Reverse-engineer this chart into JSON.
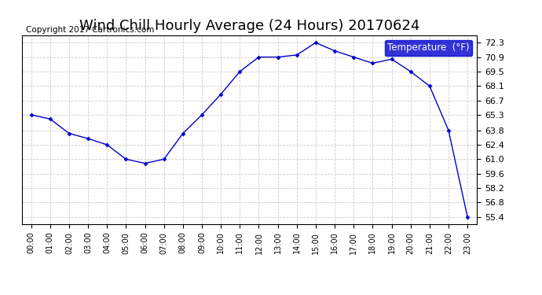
{
  "title": "Wind Chill Hourly Average (24 Hours) 20170624",
  "copyright": "Copyright 2017 Cartronics.com",
  "legend_label": "Temperature  (°F)",
  "x_labels": [
    "00:00",
    "01:00",
    "02:00",
    "03:00",
    "04:00",
    "05:00",
    "06:00",
    "07:00",
    "08:00",
    "09:00",
    "10:00",
    "11:00",
    "12:00",
    "13:00",
    "14:00",
    "15:00",
    "16:00",
    "17:00",
    "18:00",
    "19:00",
    "20:00",
    "21:00",
    "22:00",
    "23:00"
  ],
  "y_values": [
    65.3,
    64.9,
    63.5,
    63.0,
    62.4,
    61.0,
    60.6,
    61.0,
    63.5,
    65.3,
    67.3,
    69.5,
    70.9,
    70.9,
    71.1,
    72.3,
    71.5,
    70.9,
    70.3,
    70.7,
    69.5,
    68.1,
    63.8,
    55.4
  ],
  "line_color": "#0000cc",
  "marker_color": "#0000cc",
  "bg_color": "#ffffff",
  "plot_bg_color": "#ffffff",
  "grid_color": "#cccccc",
  "ylim_min": 54.7,
  "ylim_max": 73.0,
  "yticks": [
    55.4,
    56.8,
    58.2,
    59.6,
    61.0,
    62.4,
    63.8,
    65.3,
    66.7,
    68.1,
    69.5,
    70.9,
    72.3
  ],
  "title_fontsize": 13,
  "copyright_fontsize": 7.5,
  "legend_fontsize": 8.5,
  "legend_bg": "#0000cc",
  "legend_fg": "#ffffff"
}
